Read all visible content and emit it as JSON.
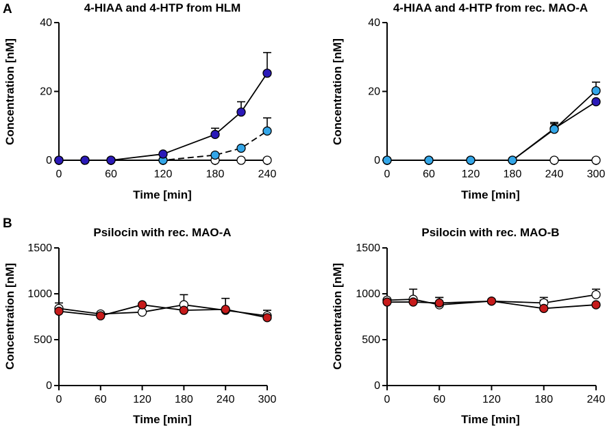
{
  "figure": {
    "panel_letters": [
      "A",
      "B"
    ]
  },
  "colors": {
    "dark_blue": "#2b1ab8",
    "light_blue": "#33a6e8",
    "red": "#c61b1b",
    "white": "#ffffff",
    "axis": "#000000"
  },
  "chart_data": [
    {
      "type": "line",
      "panel": "A",
      "title": "4-HIAA and 4-HTP from HLM",
      "xlabel": "Time [min]",
      "ylabel": "Concentration [nM]",
      "xlim": [
        0,
        240
      ],
      "ylim": [
        0,
        40
      ],
      "xticks": [
        0,
        60,
        120,
        180,
        240
      ],
      "yticks": [
        0,
        20,
        40
      ],
      "x": [
        0,
        30,
        60,
        120,
        180,
        210,
        240
      ],
      "series": [
        {
          "name": "open",
          "fill": "white",
          "values": [
            0,
            0,
            0,
            0,
            0,
            0,
            0
          ],
          "err": [
            0,
            0,
            0,
            0,
            0,
            0,
            0
          ],
          "line": "none"
        },
        {
          "name": "light-blue",
          "fill": "light_blue",
          "values": [
            0,
            0,
            0,
            0,
            1.5,
            3.5,
            8.5
          ],
          "err": [
            0,
            0,
            0,
            0,
            0,
            1.3,
            3.8
          ],
          "line": "dashed",
          "line_from": 2
        },
        {
          "name": "dark-blue",
          "fill": "dark_blue",
          "values": [
            0,
            0,
            0,
            1.8,
            7.5,
            14,
            25.3
          ],
          "err": [
            0,
            0,
            0,
            1.2,
            1.8,
            3.0,
            6.0
          ],
          "line": "solid",
          "line_from": 2
        }
      ]
    },
    {
      "type": "line",
      "panel": "A",
      "title": "4-HIAA and 4-HTP from rec. MAO-A",
      "xlabel": "Time [min]",
      "ylabel": "Concentration [nM]",
      "xlim": [
        0,
        300
      ],
      "ylim": [
        0,
        40
      ],
      "xticks": [
        0,
        60,
        120,
        180,
        240,
        300
      ],
      "yticks": [
        0,
        20,
        40
      ],
      "x": [
        0,
        60,
        120,
        180,
        240,
        300
      ],
      "series": [
        {
          "name": "open",
          "fill": "white",
          "values": [
            0,
            0,
            0,
            0,
            0,
            0
          ],
          "err": [
            0,
            0,
            0,
            0,
            0,
            0
          ],
          "line": "none"
        },
        {
          "name": "dark-blue",
          "fill": "dark_blue",
          "values": [
            0,
            0,
            0,
            0,
            9.2,
            17
          ],
          "err": [
            0,
            0,
            0,
            0,
            1.4,
            0
          ],
          "line": "solid",
          "line_from": 3
        },
        {
          "name": "light-blue",
          "fill": "light_blue",
          "values": [
            0,
            0,
            0,
            0,
            9,
            20.2
          ],
          "err": [
            0,
            0,
            0,
            0,
            2.0,
            2.5
          ],
          "line": "solid",
          "line_from": 3
        }
      ]
    },
    {
      "type": "line",
      "panel": "B",
      "title": "Psilocin with rec. MAO-A",
      "xlabel": "Time [min]",
      "ylabel": "Concentration [nM]",
      "xlim": [
        0,
        300
      ],
      "ylim": [
        0,
        1500
      ],
      "xticks": [
        0,
        60,
        120,
        180,
        240,
        300
      ],
      "yticks": [
        0,
        500,
        1000,
        1500
      ],
      "x": [
        0,
        60,
        120,
        180,
        240,
        300
      ],
      "series": [
        {
          "name": "open",
          "fill": "white",
          "values": [
            840,
            780,
            800,
            880,
            820,
            760
          ],
          "err": [
            50,
            50,
            0,
            110,
            130,
            60
          ],
          "line": "solid",
          "line_from": 0
        },
        {
          "name": "red",
          "fill": "red",
          "values": [
            810,
            760,
            880,
            820,
            830,
            740
          ],
          "err": [
            90,
            40,
            30,
            40,
            40,
            40
          ],
          "line": "solid",
          "line_from": 0
        }
      ]
    },
    {
      "type": "line",
      "panel": "B",
      "title": "Psilocin with rec. MAO-B",
      "xlabel": "Time [min]",
      "ylabel": "Concentration [nM]",
      "xlim": [
        0,
        240
      ],
      "ylim": [
        0,
        1500
      ],
      "xticks": [
        0,
        60,
        120,
        180,
        240
      ],
      "yticks": [
        0,
        500,
        1000,
        1500
      ],
      "x": [
        0,
        30,
        60,
        120,
        180,
        240
      ],
      "series": [
        {
          "name": "open",
          "fill": "white",
          "values": [
            930,
            940,
            880,
            920,
            900,
            990
          ],
          "err": [
            20,
            110,
            80,
            0,
            60,
            60
          ],
          "line": "solid",
          "line_from": 0
        },
        {
          "name": "red",
          "fill": "red",
          "values": [
            910,
            910,
            900,
            920,
            840,
            880
          ],
          "err": [
            40,
            20,
            60,
            0,
            90,
            40
          ],
          "line": "solid",
          "line_from": 0
        }
      ]
    }
  ]
}
